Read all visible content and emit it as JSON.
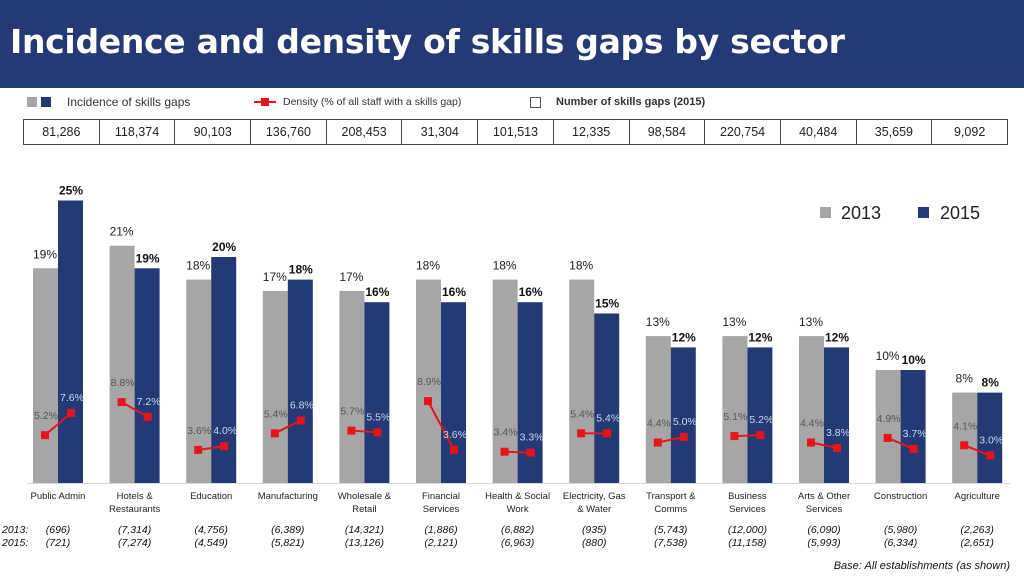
{
  "header": {
    "title": "Incidence and density of skills gaps by sector"
  },
  "legend_top": {
    "incidence_label": "Incidence of skills gaps",
    "density_label": "Density (% of all staff with a skills gap)",
    "number_label": "Number of skills gaps (2015)"
  },
  "number_of_gaps_2015": [
    "81,286",
    "118,374",
    "90,103",
    "136,760",
    "208,453",
    "31,304",
    "101,513",
    "12,335",
    "98,584",
    "220,754",
    "40,484",
    "35,659",
    "9,092"
  ],
  "base_note": "Base: All establishments (as shown)",
  "colors": {
    "title_bg": "#233a75",
    "bar_2013": "#a6a6a6",
    "bar_2015": "#233a75",
    "density_line": "#e8141b"
  },
  "chart_data": {
    "type": "bar",
    "categories": [
      "Public Admin",
      "Hotels & Restaurants",
      "Education",
      "Manufacturing",
      "Wholesale & Retail",
      "Financial Services",
      "Health & Social Work",
      "Electricity, Gas & Water",
      "Transport & Comms",
      "Business Services",
      "Arts & Other Services",
      "Construction",
      "Agriculture"
    ],
    "category_lines": [
      [
        "Public Admin"
      ],
      [
        "Hotels &",
        "Restaurants"
      ],
      [
        "Education"
      ],
      [
        "Manufacturing"
      ],
      [
        "Wholesale &",
        "Retail"
      ],
      [
        "Financial",
        "Services"
      ],
      [
        "Health & Social",
        "Work"
      ],
      [
        "Electricity, Gas",
        "& Water"
      ],
      [
        "Transport &",
        "Comms"
      ],
      [
        "Business",
        "Services"
      ],
      [
        "Arts & Other",
        "Services"
      ],
      [
        "Construction"
      ],
      [
        "Agriculture"
      ]
    ],
    "series": [
      {
        "name": "2013",
        "values": [
          19,
          21,
          18,
          17,
          17,
          18,
          18,
          18,
          13,
          13,
          13,
          10,
          8
        ]
      },
      {
        "name": "2015",
        "values": [
          25,
          19,
          20,
          18,
          16,
          16,
          16,
          15,
          12,
          12,
          12,
          10,
          8
        ]
      }
    ],
    "density": {
      "name": "Density (% of all staff with a skills gap)",
      "values_2013": [
        5.2,
        8.8,
        3.6,
        5.4,
        5.7,
        8.9,
        3.4,
        5.4,
        4.4,
        5.1,
        4.4,
        4.9,
        4.1
      ],
      "values_2015": [
        7.6,
        7.2,
        4.0,
        6.8,
        5.5,
        3.6,
        3.3,
        5.4,
        5.0,
        5.2,
        3.8,
        3.7,
        3.0
      ]
    },
    "base_sizes": {
      "label_2013": "2013:",
      "label_2015": "2015:",
      "values_2013": [
        "(696)",
        "(7,314)",
        "(4,756)",
        "(6,389)",
        "(14,321)",
        "(1,886)",
        "(6,882)",
        "(935)",
        "(5,743)",
        "(12,000)",
        "(6,090)",
        "(5,980)",
        "(2,263)"
      ],
      "values_2015": [
        "(721)",
        "(7,274)",
        "(4,549)",
        "(5,821)",
        "(13,126)",
        "(2,121)",
        "(6,963)",
        "(880)",
        "(7,538)",
        "(11,158)",
        "(5,993)",
        "(6,334)",
        "(2,651)"
      ]
    },
    "legend_position": "top-right",
    "ylim": [
      0,
      25
    ]
  }
}
